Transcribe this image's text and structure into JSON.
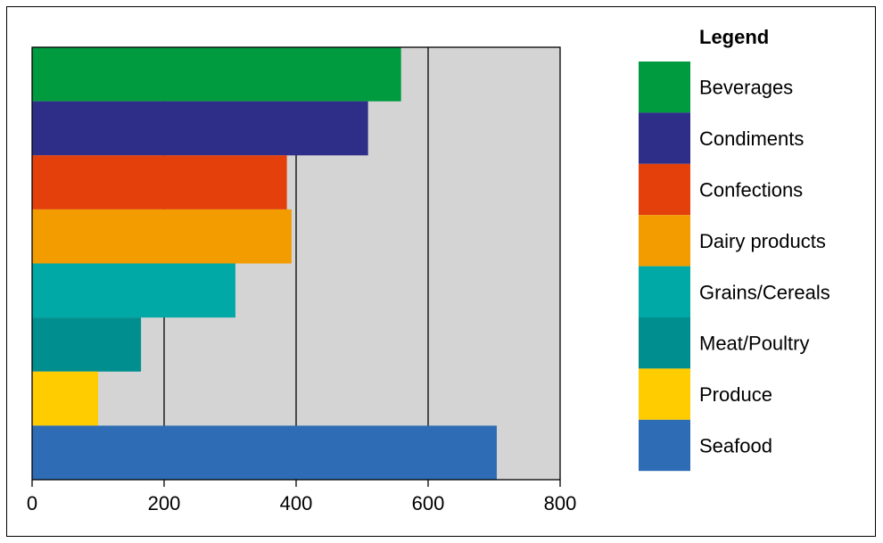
{
  "chart_data": {
    "type": "bar",
    "orientation": "horizontal",
    "categories": [
      "Beverages",
      "Condiments",
      "Confections",
      "Dairy products",
      "Grains/Cereals",
      "Meat/Poultry",
      "Produce",
      "Seafood"
    ],
    "values": [
      559,
      509,
      386,
      393,
      308,
      165,
      100,
      704
    ],
    "colors": [
      "#009a3f",
      "#2e2d88",
      "#e4400b",
      "#f29c00",
      "#00a9a5",
      "#008e8e",
      "#ffcc00",
      "#2e6db5"
    ],
    "xlim": [
      0,
      800
    ],
    "x_ticks": [
      "0",
      "200",
      "400",
      "600",
      "800"
    ],
    "gridlines_x": [
      200,
      400,
      600
    ],
    "plot_background": "#d4d4d4",
    "grid": true,
    "legend_position": "right",
    "legend_title": "Legend",
    "title": "",
    "xlabel": "",
    "ylabel": ""
  }
}
